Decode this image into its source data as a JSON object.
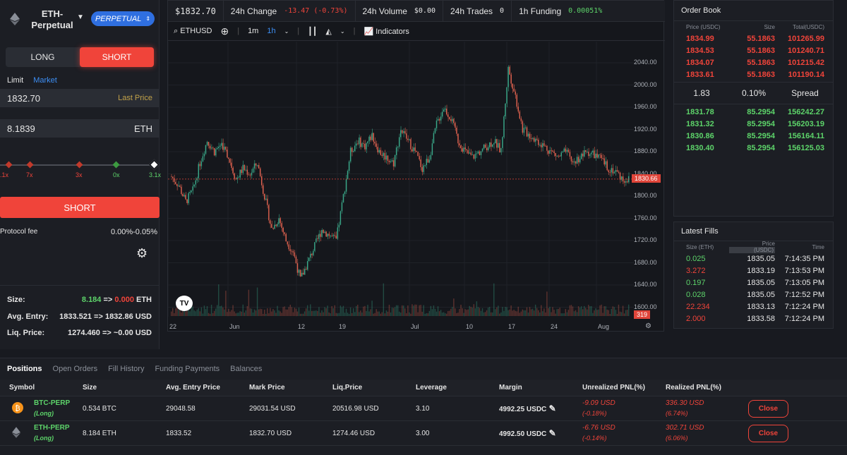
{
  "market": {
    "name_line1": "ETH-",
    "name_line2": "Perpetual",
    "type": "PERPETUAL"
  },
  "order_form": {
    "side_long": "LONG",
    "side_short": "SHORT",
    "type_limit": "Limit",
    "type_market": "Market",
    "price_value": "1832.70",
    "price_hint": "Last Price",
    "size_value": "8.1839",
    "size_unit": "ETH",
    "leverage_marks": [
      ".1x",
      "7x",
      "3x",
      "0x",
      "3.1x"
    ],
    "submit": "SHORT",
    "fee_label": "Protocol fee",
    "fee_value": "0.00%-0.05%",
    "size_label": "Size:",
    "size_from": "8.184",
    "size_arrow": "=>",
    "size_to": "0.000",
    "size_unit2": "ETH",
    "entry_label": "Avg. Entry:",
    "entry_value": "1833.521 => 1832.86 USD",
    "liq_label": "Liq. Price:",
    "liq_value": "1274.460 => ~0.00 USD"
  },
  "stats": {
    "price": "$1832.70",
    "change_label": "24h Change",
    "change_value": "-13.47 (-0.73%)",
    "volume_label": "24h Volume",
    "volume_value": "$0.00",
    "trades_label": "24h Trades",
    "trades_value": "0",
    "funding_label": "1h Funding",
    "funding_value": "0.00051%"
  },
  "toolbar": {
    "symbol": "ETHUSD",
    "tf1": "1m",
    "tf2": "1h",
    "indicators": "Indicators"
  },
  "chart_data": {
    "type": "candlestick",
    "symbol": "ETHUSD",
    "y_ticks": [
      "2040.00",
      "2000.00",
      "1960.00",
      "1920.00",
      "1880.00",
      "1840.00",
      "1800.00",
      "1760.00",
      "1720.00",
      "1680.00",
      "1640.00",
      "1600.00"
    ],
    "x_ticks": [
      "22",
      "Jun",
      "12",
      "19",
      "Jul",
      "10",
      "17",
      "24",
      "Aug"
    ],
    "last_price_label": "1830.66",
    "volume_label": "319",
    "ylim": [
      1600,
      2040
    ],
    "close_series": [
      1835,
      1820,
      1790,
      1810,
      1860,
      1900,
      1880,
      1895,
      1870,
      1830,
      1850,
      1840,
      1860,
      1800,
      1740,
      1760,
      1720,
      1700,
      1650,
      1680,
      1710,
      1740,
      1730,
      1720,
      1800,
      1880,
      1900,
      1890,
      1910,
      1880,
      1870,
      1860,
      1920,
      1900,
      1880,
      1850,
      1870,
      1930,
      1960,
      1940,
      1900,
      1880,
      1870,
      1880,
      1890,
      1900,
      1880,
      2030,
      1980,
      1920,
      1910,
      1900,
      1890,
      1880,
      1870,
      1880,
      1860,
      1870,
      1880,
      1875,
      1865,
      1850,
      1845,
      1830
    ]
  },
  "order_book": {
    "title": "Order Book",
    "h_price": "Price (USDC)",
    "h_size": "Size",
    "h_total": "Total(USDC)",
    "asks": [
      {
        "p": "1834.99",
        "s": "55.1863",
        "t": "101265.99"
      },
      {
        "p": "1834.53",
        "s": "55.1863",
        "t": "101240.71"
      },
      {
        "p": "1834.07",
        "s": "55.1863",
        "t": "101215.42"
      },
      {
        "p": "1833.61",
        "s": "55.1863",
        "t": "101190.14"
      }
    ],
    "spread_value": "1.83",
    "spread_pct": "0.10%",
    "spread_label": "Spread",
    "bids": [
      {
        "p": "1831.78",
        "s": "85.2954",
        "t": "156242.27"
      },
      {
        "p": "1831.32",
        "s": "85.2954",
        "t": "156203.19"
      },
      {
        "p": "1830.86",
        "s": "85.2954",
        "t": "156164.11"
      },
      {
        "p": "1830.40",
        "s": "85.2954",
        "t": "156125.03"
      }
    ]
  },
  "latest_fills": {
    "title": "Latest Fills",
    "h_size": "Size (ETH)",
    "h_price": "Price",
    "h_price_unit": "(USDC)",
    "h_time": "Time",
    "rows": [
      {
        "s": "0.025",
        "p": "1835.05",
        "t": "7:14:35 PM",
        "side": "buy"
      },
      {
        "s": "3.272",
        "p": "1833.19",
        "t": "7:13:53 PM",
        "side": "sell"
      },
      {
        "s": "0.197",
        "p": "1835.05",
        "t": "7:13:05 PM",
        "side": "buy"
      },
      {
        "s": "0.028",
        "p": "1835.05",
        "t": "7:12:52 PM",
        "side": "buy"
      },
      {
        "s": "22.234",
        "p": "1833.13",
        "t": "7:12:24 PM",
        "side": "sell"
      },
      {
        "s": "2.000",
        "p": "1833.58",
        "t": "7:12:24 PM",
        "side": "sell"
      }
    ]
  },
  "positions": {
    "tabs": [
      "Positions",
      "Open Orders",
      "Fill History",
      "Funding Payments",
      "Balances"
    ],
    "headers": [
      "Symbol",
      "Size",
      "Avg. Entry Price",
      "Mark Price",
      "Liq.Price",
      "Leverage",
      "Margin",
      "Unrealized PNL(%)",
      "Realized PNL(%)"
    ],
    "rows": [
      {
        "sym": "BTC-PERP",
        "dir": "(Long)",
        "size": "0.534 BTC",
        "entry": "29048.58",
        "mark": "29031.54 USD",
        "liq": "20516.98 USD",
        "lev": "3.10",
        "margin": "4992.25 USDC",
        "upnl": "-9.09 USD",
        "upnl_pct": "(-0.18%)",
        "rpnl": "336.30 USD",
        "rpnl_pct": "(6.74%)",
        "close": "Close"
      },
      {
        "sym": "ETH-PERP",
        "dir": "(Long)",
        "size": "8.184 ETH",
        "entry": "1833.52",
        "mark": "1832.70 USD",
        "liq": "1274.46 USD",
        "lev": "3.00",
        "margin": "4992.50 USDC",
        "upnl": "-6.76 USD",
        "upnl_pct": "(-0.14%)",
        "rpnl": "302.71 USD",
        "rpnl_pct": "(6.06%)",
        "close": "Close"
      }
    ]
  }
}
